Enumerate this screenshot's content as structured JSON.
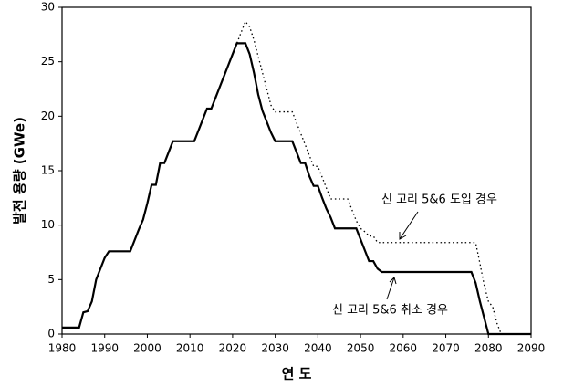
{
  "chart_data": {
    "type": "line",
    "xlabel": "연 도",
    "ylabel": "발전 용량 (GWe)",
    "x": [
      1980,
      1981,
      1982,
      1983,
      1984,
      1985,
      1986,
      1987,
      1988,
      1989,
      1990,
      1991,
      1992,
      1993,
      1994,
      1995,
      1996,
      1997,
      1998,
      1999,
      2000,
      2001,
      2002,
      2003,
      2004,
      2005,
      2006,
      2007,
      2008,
      2009,
      2010,
      2011,
      2012,
      2013,
      2014,
      2015,
      2016,
      2017,
      2018,
      2019,
      2020,
      2021,
      2022,
      2023,
      2024,
      2025,
      2026,
      2027,
      2028,
      2029,
      2030,
      2031,
      2032,
      2033,
      2034,
      2035,
      2036,
      2037,
      2038,
      2039,
      2040,
      2041,
      2042,
      2043,
      2044,
      2045,
      2046,
      2047,
      2048,
      2049,
      2050,
      2051,
      2052,
      2053,
      2054,
      2055,
      2056,
      2057,
      2058,
      2059,
      2060,
      2061,
      2062,
      2063,
      2064,
      2065,
      2066,
      2067,
      2068,
      2069,
      2070,
      2071,
      2072,
      2073,
      2074,
      2075,
      2076,
      2077,
      2078,
      2079,
      2080,
      2081,
      2082,
      2083,
      2084,
      2085,
      2086,
      2087,
      2088,
      2089,
      2090
    ],
    "series": [
      {
        "name": "신 고리 5&6 취소 경우",
        "color": "#000000",
        "style": "solid",
        "values": [
          0.6,
          0.6,
          0.6,
          0.6,
          0.6,
          2,
          2.1,
          3,
          5,
          6,
          7,
          7.6,
          7.6,
          7.6,
          7.6,
          7.6,
          7.6,
          8.6,
          9.6,
          10.5,
          12,
          13.7,
          13.7,
          15.7,
          15.7,
          16.7,
          17.7,
          17.7,
          17.7,
          17.7,
          17.7,
          17.7,
          18.7,
          19.7,
          20.7,
          20.7,
          21.7,
          22.7,
          23.7,
          24.7,
          25.7,
          26.7,
          26.7,
          26.7,
          25.7,
          24,
          22,
          20.5,
          19.5,
          18.5,
          17.7,
          17.7,
          17.7,
          17.7,
          17.7,
          16.7,
          15.7,
          15.7,
          14.5,
          13.6,
          13.6,
          12.5,
          11.5,
          10.7,
          9.7,
          9.7,
          9.7,
          9.7,
          9.7,
          9.7,
          8.7,
          7.7,
          6.7,
          6.7,
          6,
          5.7,
          5.7,
          5.7,
          5.7,
          5.7,
          5.7,
          5.7,
          5.7,
          5.7,
          5.7,
          5.7,
          5.7,
          5.7,
          5.7,
          5.7,
          5.7,
          5.7,
          5.7,
          5.7,
          5.7,
          5.7,
          5.7,
          4.7,
          3,
          1.5,
          0,
          0,
          0,
          0,
          0,
          0,
          0,
          0,
          0,
          0,
          0
        ]
      },
      {
        "name": "신 고리 5&6 도입 경우",
        "color": "#000000",
        "style": "dotted",
        "values": [
          0.6,
          0.6,
          0.6,
          0.6,
          0.6,
          2,
          2.1,
          3,
          5,
          6,
          7,
          7.6,
          7.6,
          7.6,
          7.6,
          7.6,
          7.6,
          8.6,
          9.6,
          10.5,
          12,
          13.7,
          13.7,
          15.7,
          15.7,
          16.7,
          17.7,
          17.7,
          17.7,
          17.7,
          17.7,
          17.7,
          18.7,
          19.7,
          20.7,
          20.7,
          21.7,
          22.7,
          23.7,
          24.7,
          25.7,
          26.7,
          27.7,
          28.7,
          28.2,
          27,
          25.5,
          24,
          22.5,
          21,
          20.4,
          20.4,
          20.4,
          20.4,
          20.4,
          19.4,
          18.4,
          17.4,
          16.4,
          15.4,
          15.4,
          14.4,
          13.4,
          12.4,
          12.4,
          12.4,
          12.4,
          12.4,
          11.4,
          10.4,
          9.7,
          9.4,
          9,
          9,
          8.4,
          8.4,
          8.4,
          8.4,
          8.4,
          8.4,
          8.4,
          8.4,
          8.4,
          8.4,
          8.4,
          8.4,
          8.4,
          8.4,
          8.4,
          8.4,
          8.4,
          8.4,
          8.4,
          8.4,
          8.4,
          8.4,
          8.4,
          8.4,
          6.5,
          4.5,
          3,
          2.5,
          1,
          0,
          0,
          0,
          0,
          0,
          0,
          0,
          0
        ]
      }
    ],
    "xlim": [
      1980,
      2090
    ],
    "xticks": [
      1980,
      1990,
      2000,
      2010,
      2020,
      2030,
      2040,
      2050,
      2060,
      2070,
      2080,
      2090
    ],
    "ylim": [
      0,
      30
    ],
    "yticks": [
      0,
      5,
      10,
      15,
      20,
      25,
      30
    ],
    "grid": false
  }
}
